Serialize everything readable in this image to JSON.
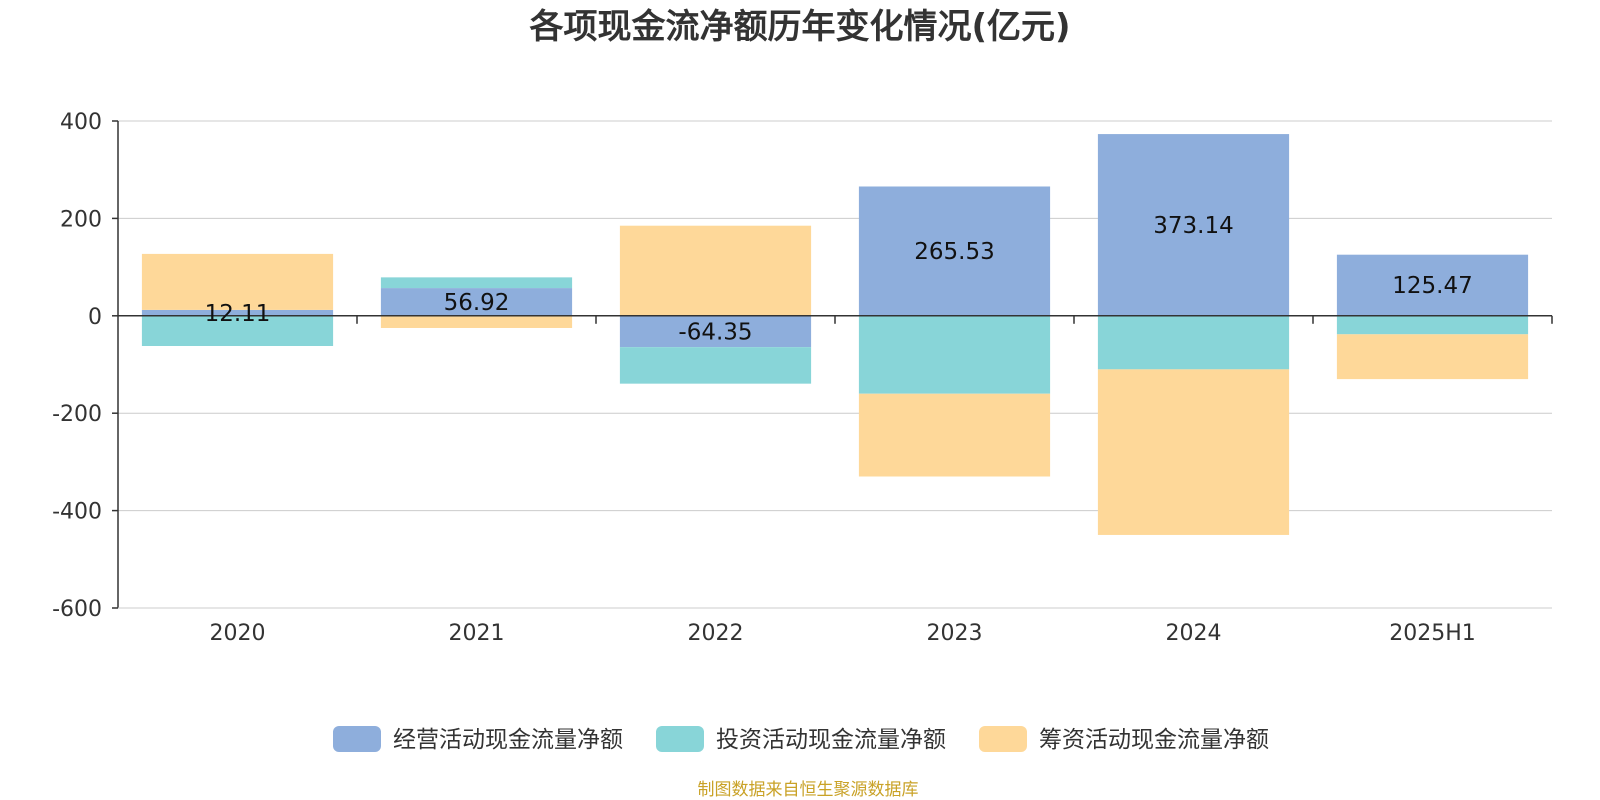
{
  "chart_data": {
    "type": "bar",
    "stacked": true,
    "title": "各项现金流净额历年变化情况(亿元)",
    "categories": [
      "2020",
      "2021",
      "2022",
      "2023",
      "2024",
      "2025H1"
    ],
    "series": [
      {
        "name": "经营活动现金流量净额",
        "color": "#8eaedc",
        "values": [
          12.11,
          56.92,
          -64.35,
          265.53,
          373.14,
          125.47
        ]
      },
      {
        "name": "投资活动现金流量净额",
        "color": "#88d5d8",
        "values": [
          -62,
          22,
          -75,
          -160,
          -110,
          -38
        ]
      },
      {
        "name": "筹资活动现金流量净额",
        "color": "#fed899",
        "values": [
          115,
          -25,
          185,
          -170,
          -340,
          -92
        ]
      }
    ],
    "data_labels": [
      "12.11",
      "56.92",
      "-64.35",
      "265.53",
      "373.14",
      "125.47"
    ],
    "ylim": [
      -600,
      400
    ],
    "yticks": [
      400,
      200,
      0,
      -200,
      -400,
      -600
    ],
    "ytick_labels": [
      "400",
      "200",
      "0",
      "-200",
      "-400",
      "-600"
    ],
    "grid": true,
    "legend_position": "bottom-center"
  },
  "source_text": "制图数据来自恒生聚源数据库",
  "colors": {
    "axis": "#333333",
    "grid": "#cccccc",
    "source": "#c9a227"
  }
}
